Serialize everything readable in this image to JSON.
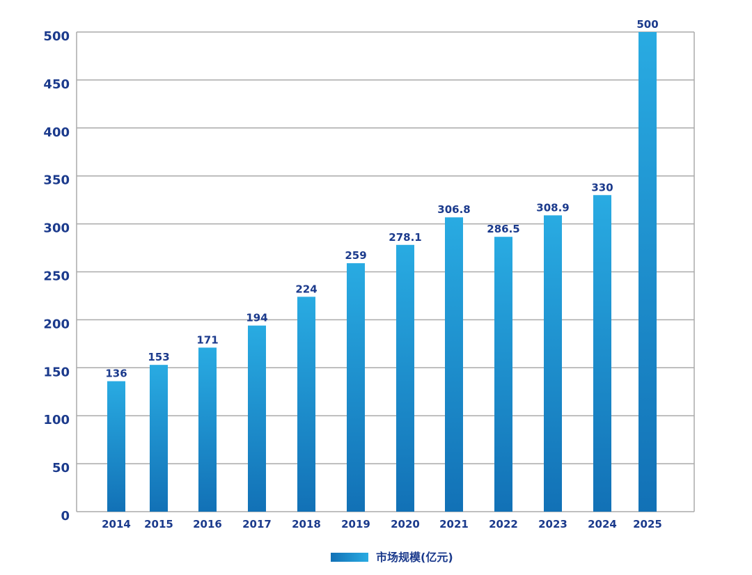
{
  "chart_data": {
    "type": "bar",
    "title": "",
    "xlabel": "",
    "ylabel": "",
    "categories": [
      "2014",
      "2015",
      "2016",
      "2017",
      "2018",
      "2019",
      "2020",
      "2021",
      "2022",
      "2023",
      "2024",
      "2025"
    ],
    "series": [
      {
        "name": "市场规模(亿元)",
        "values": [
          136,
          153,
          171,
          194,
          224,
          259,
          278.1,
          306.8,
          286.5,
          308.9,
          330,
          500
        ]
      }
    ],
    "data_labels": [
      "136",
      "153",
      "171",
      "194",
      "224",
      "259",
      "278.1",
      "306.8",
      "286.5",
      "308.9",
      "330",
      "500"
    ],
    "yticks": [
      0,
      50,
      100,
      150,
      200,
      250,
      300,
      350,
      400,
      450,
      500
    ],
    "ylim": [
      0,
      500
    ],
    "grid": true,
    "legend_position": "bottom-center",
    "colors": {
      "bar_top": "#29abe2",
      "bar_bottom": "#1271b6",
      "text": "#1b3a8c",
      "grid": "#aaaaaa"
    }
  }
}
